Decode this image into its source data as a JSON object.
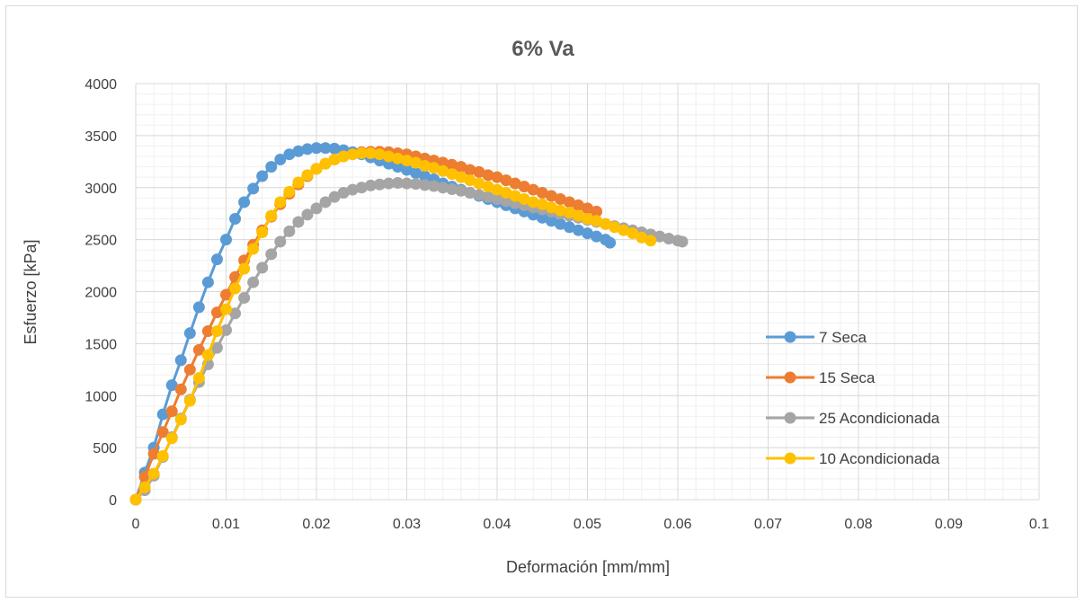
{
  "chart_data": {
    "type": "scatter",
    "title": "6% Va",
    "xlabel": "Deformación [mm/mm]",
    "ylabel": "Esfuerzo [kPa]",
    "xlim": [
      0,
      0.1
    ],
    "ylim": [
      0,
      4000
    ],
    "x_ticks": [
      "0",
      "0.01",
      "0.02",
      "0.03",
      "0.04",
      "0.05",
      "0.06",
      "0.07",
      "0.08",
      "0.09",
      "0.1"
    ],
    "y_ticks": [
      "0",
      "500",
      "1000",
      "1500",
      "2000",
      "2500",
      "3000",
      "3500",
      "4000"
    ],
    "grid": "major and minor",
    "legend_position": "right",
    "series": [
      {
        "name": "7 Seca",
        "color": "#5b9bd5",
        "x": [
          0,
          0.001,
          0.002,
          0.003,
          0.004,
          0.005,
          0.006,
          0.007,
          0.008,
          0.009,
          0.01,
          0.011,
          0.012,
          0.013,
          0.014,
          0.015,
          0.016,
          0.017,
          0.018,
          0.019,
          0.02,
          0.021,
          0.022,
          0.023,
          0.024,
          0.025,
          0.026,
          0.027,
          0.028,
          0.029,
          0.03,
          0.031,
          0.032,
          0.033,
          0.034,
          0.035,
          0.036,
          0.037,
          0.038,
          0.039,
          0.04,
          0.041,
          0.042,
          0.043,
          0.044,
          0.045,
          0.046,
          0.047,
          0.048,
          0.049,
          0.05,
          0.051,
          0.052,
          0.0525
        ],
        "y": [
          0,
          260,
          500,
          820,
          1100,
          1340,
          1600,
          1850,
          2090,
          2310,
          2500,
          2700,
          2860,
          2990,
          3110,
          3200,
          3270,
          3320,
          3350,
          3370,
          3380,
          3380,
          3375,
          3360,
          3340,
          3320,
          3290,
          3260,
          3230,
          3200,
          3170,
          3140,
          3110,
          3080,
          3040,
          3010,
          2980,
          2950,
          2920,
          2890,
          2860,
          2830,
          2800,
          2770,
          2740,
          2710,
          2680,
          2650,
          2620,
          2590,
          2560,
          2530,
          2500,
          2470
        ]
      },
      {
        "name": "15 Seca",
        "color": "#ed7d31",
        "x": [
          0,
          0.001,
          0.002,
          0.003,
          0.004,
          0.005,
          0.006,
          0.007,
          0.008,
          0.009,
          0.01,
          0.011,
          0.012,
          0.013,
          0.014,
          0.015,
          0.016,
          0.017,
          0.018,
          0.019,
          0.02,
          0.021,
          0.022,
          0.023,
          0.024,
          0.025,
          0.026,
          0.027,
          0.028,
          0.029,
          0.03,
          0.031,
          0.032,
          0.033,
          0.034,
          0.035,
          0.036,
          0.037,
          0.038,
          0.039,
          0.04,
          0.041,
          0.042,
          0.043,
          0.044,
          0.045,
          0.046,
          0.047,
          0.048,
          0.049,
          0.05,
          0.051
        ],
        "y": [
          0,
          220,
          440,
          650,
          850,
          1060,
          1250,
          1440,
          1620,
          1800,
          1970,
          2140,
          2300,
          2450,
          2590,
          2720,
          2840,
          2940,
          3030,
          3110,
          3180,
          3230,
          3270,
          3300,
          3320,
          3340,
          3345,
          3345,
          3340,
          3330,
          3320,
          3300,
          3280,
          3260,
          3240,
          3220,
          3200,
          3170,
          3150,
          3120,
          3100,
          3070,
          3040,
          3010,
          2980,
          2950,
          2920,
          2890,
          2860,
          2830,
          2800,
          2770
        ]
      },
      {
        "name": "25 Acondicionada",
        "color": "#a5a5a5",
        "x": [
          0,
          0.001,
          0.002,
          0.003,
          0.004,
          0.005,
          0.006,
          0.007,
          0.008,
          0.009,
          0.01,
          0.011,
          0.012,
          0.013,
          0.014,
          0.015,
          0.016,
          0.017,
          0.018,
          0.019,
          0.02,
          0.021,
          0.022,
          0.023,
          0.024,
          0.025,
          0.026,
          0.027,
          0.028,
          0.029,
          0.03,
          0.031,
          0.032,
          0.033,
          0.034,
          0.035,
          0.036,
          0.037,
          0.038,
          0.039,
          0.04,
          0.041,
          0.042,
          0.043,
          0.044,
          0.045,
          0.046,
          0.047,
          0.048,
          0.049,
          0.05,
          0.051,
          0.052,
          0.053,
          0.054,
          0.055,
          0.056,
          0.057,
          0.058,
          0.059,
          0.06,
          0.0605
        ],
        "y": [
          0,
          90,
          230,
          410,
          600,
          780,
          960,
          1130,
          1300,
          1460,
          1630,
          1790,
          1940,
          2090,
          2230,
          2360,
          2480,
          2580,
          2670,
          2740,
          2800,
          2860,
          2910,
          2950,
          2980,
          3000,
          3020,
          3030,
          3040,
          3045,
          3040,
          3035,
          3025,
          3015,
          3000,
          2985,
          2970,
          2950,
          2930,
          2910,
          2890,
          2870,
          2850,
          2830,
          2810,
          2790,
          2770,
          2750,
          2730,
          2710,
          2690,
          2670,
          2650,
          2630,
          2610,
          2590,
          2570,
          2550,
          2530,
          2510,
          2490,
          2480
        ]
      },
      {
        "name": "10 Acondicionada",
        "color": "#ffc000",
        "x": [
          0,
          0.001,
          0.002,
          0.003,
          0.004,
          0.005,
          0.006,
          0.007,
          0.008,
          0.009,
          0.01,
          0.011,
          0.012,
          0.013,
          0.014,
          0.015,
          0.016,
          0.017,
          0.018,
          0.019,
          0.02,
          0.021,
          0.022,
          0.023,
          0.024,
          0.025,
          0.026,
          0.027,
          0.028,
          0.029,
          0.03,
          0.031,
          0.032,
          0.033,
          0.034,
          0.035,
          0.036,
          0.037,
          0.038,
          0.039,
          0.04,
          0.041,
          0.042,
          0.043,
          0.044,
          0.045,
          0.046,
          0.047,
          0.048,
          0.049,
          0.05,
          0.051,
          0.052,
          0.053,
          0.054,
          0.055,
          0.056,
          0.057
        ],
        "y": [
          0,
          120,
          250,
          420,
          590,
          770,
          950,
          1170,
          1390,
          1620,
          1830,
          2030,
          2220,
          2410,
          2570,
          2730,
          2860,
          2960,
          3050,
          3120,
          3180,
          3230,
          3270,
          3300,
          3320,
          3330,
          3330,
          3320,
          3300,
          3280,
          3260,
          3240,
          3210,
          3190,
          3160,
          3130,
          3100,
          3070,
          3040,
          3010,
          2980,
          2950,
          2920,
          2890,
          2860,
          2840,
          2810,
          2780,
          2760,
          2730,
          2700,
          2680,
          2650,
          2620,
          2590,
          2560,
          2520,
          2490
        ]
      }
    ]
  }
}
